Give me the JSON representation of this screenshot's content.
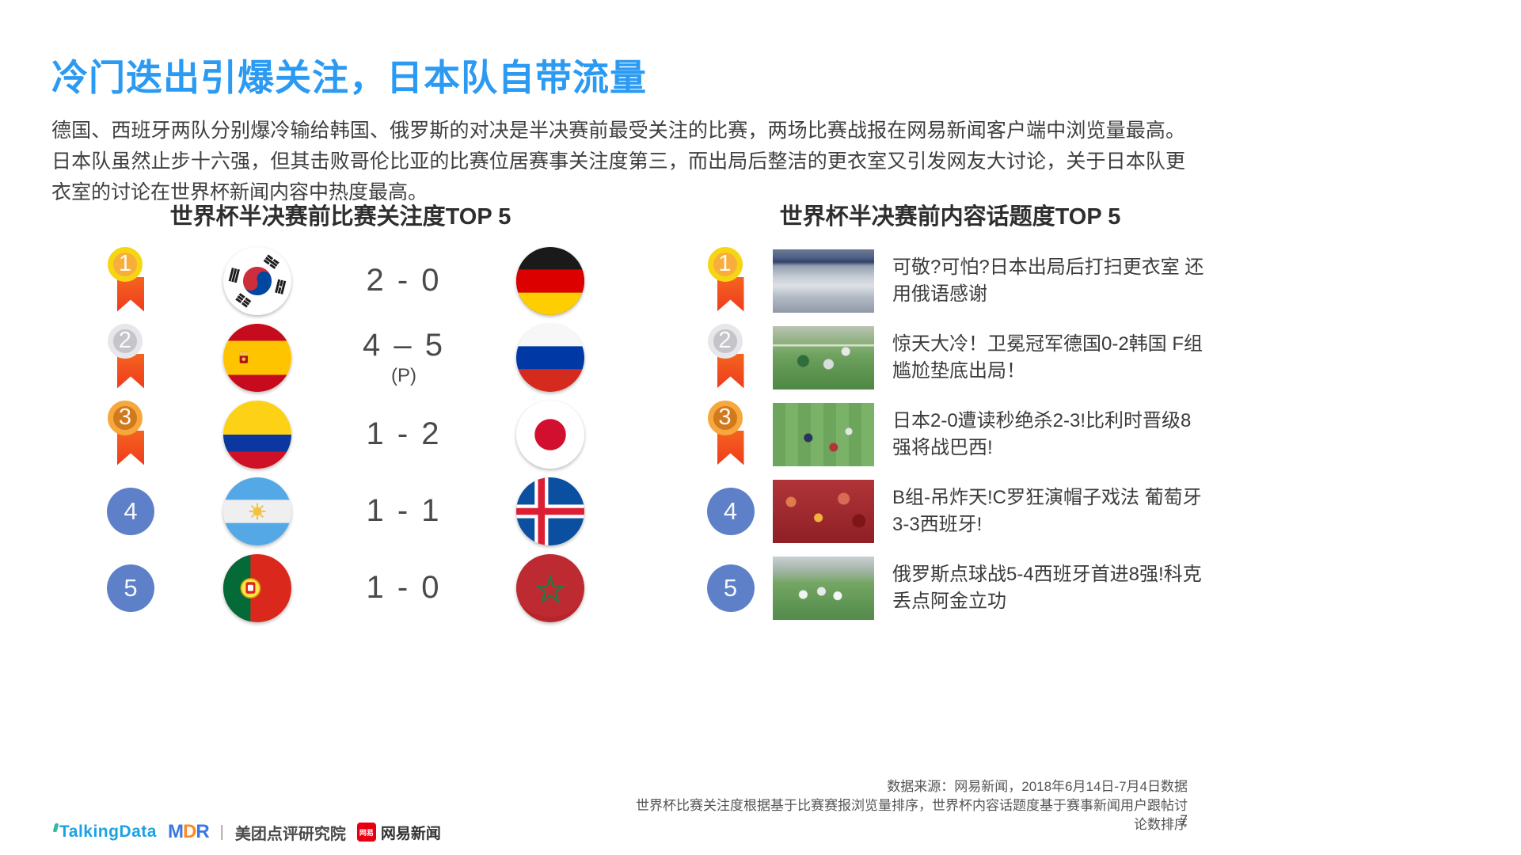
{
  "page": {
    "title": "冷门迭出引爆关注，日本队自带流量",
    "paragraph": "德国、西班牙两队分别爆冷输给韩国、俄罗斯的对决是半决赛前最受关注的比赛，两场比赛战报在网易新闻客户端中浏览量最高。日本队虽然止步十六强，但其击败哥伦比亚的比赛位居赛事关注度第三，而出局后整洁的更衣室又引发网友大讨论，关于日本队更衣室的讨论在世界杯新闻内容中热度最高。",
    "page_number": "7"
  },
  "match_section": {
    "title": "世界杯半决赛前比赛关注度TOP 5",
    "rows": [
      {
        "rank": "1",
        "home_flag": "kr",
        "home_team": "south-korea",
        "score": "2 - 0",
        "note": "",
        "away_flag": "de",
        "away_team": "germany"
      },
      {
        "rank": "2",
        "home_flag": "es",
        "home_team": "spain",
        "score": "4 – 5",
        "note": "(P)",
        "away_flag": "ru",
        "away_team": "russia"
      },
      {
        "rank": "3",
        "home_flag": "co",
        "home_team": "colombia",
        "score": "1 - 2",
        "note": "",
        "away_flag": "jp",
        "away_team": "japan"
      },
      {
        "rank": "4",
        "home_flag": "ar",
        "home_team": "argentina",
        "score": "1 - 1",
        "note": "",
        "away_flag": "is",
        "away_team": "iceland"
      },
      {
        "rank": "5",
        "home_flag": "pt",
        "home_team": "portugal",
        "score": "1 - 0",
        "note": "",
        "away_flag": "ma",
        "away_team": "morocco"
      }
    ]
  },
  "topic_section": {
    "title": "世界杯半决赛前内容话题度TOP 5",
    "rows": [
      {
        "rank": "1",
        "photo": "locker-room",
        "headline": "可敬?可怕?日本出局后打扫更衣室 还用俄语感谢"
      },
      {
        "rank": "2",
        "photo": "goal-action",
        "headline": "惊天大冷！卫冕冠军德国0-2韩国 F组尴尬垫底出局！"
      },
      {
        "rank": "3",
        "photo": "pitch-overhead",
        "headline": "日本2-0遭读秒绝杀2-3!比利时晋级8强将战巴西!"
      },
      {
        "rank": "4",
        "photo": "red-crowd",
        "headline": "B组-吊炸天!C罗狂演帽子戏法 葡萄牙3-3西班牙!"
      },
      {
        "rank": "5",
        "photo": "celebration",
        "headline": "俄罗斯点球战5-4西班牙首进8强!科克丢点阿金立功"
      }
    ]
  },
  "footer": {
    "source_line1": "数据来源：网易新闻，2018年6月14日-7月4日数据",
    "source_line2": "世界杯比赛关注度根据基于比赛赛报浏览量排序，世界杯内容话题度基于赛事新闻用户跟帖讨论数排序",
    "logos": {
      "talkingdata": "TalkingData",
      "mdr": "MDR",
      "separator": "|",
      "meituan": "美团点评研究院",
      "netease_badge": "网易",
      "netease": "网易新闻"
    }
  },
  "colors": {
    "title_blue": "#2B9AF3",
    "rank_blue": "#5E80C8",
    "ribbon_red": "#F14E22",
    "gold": "#F6D513",
    "silver": "#E7E6EB",
    "bronze": "#F7A73B"
  }
}
